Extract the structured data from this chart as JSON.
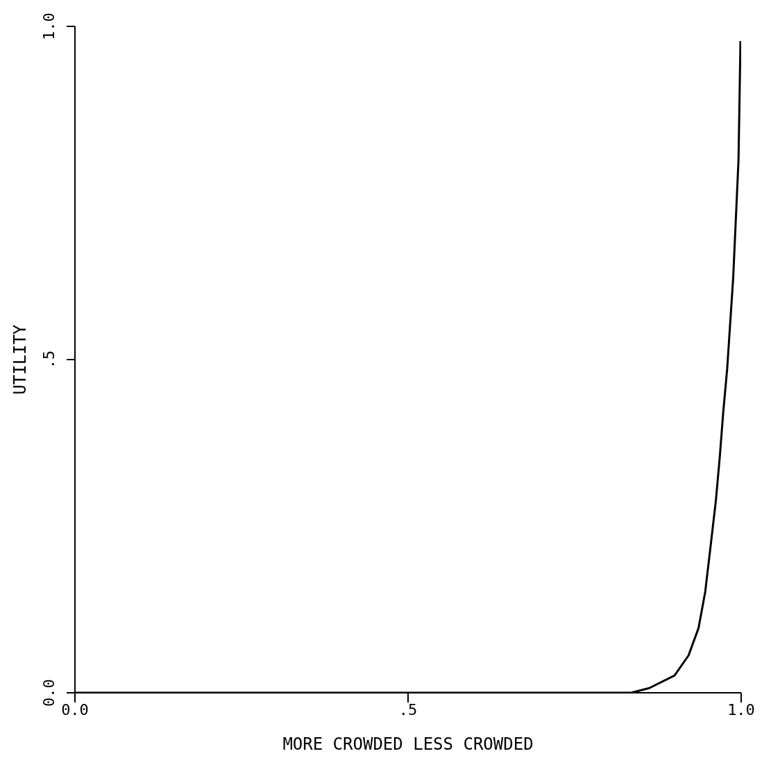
{
  "chart_data": {
    "type": "line",
    "xlabel": "MORE CROWDED      LESS CROWDED",
    "ylabel": "UTILITY",
    "x": [
      0,
      0.835,
      0.862,
      0.9,
      0.921,
      0.936,
      0.946,
      0.954,
      0.962,
      0.968,
      0.973,
      0.979,
      0.988,
      0.996,
      0.999
    ],
    "series": [
      {
        "color": "#000000",
        "values": [
          0,
          0,
          0.007,
          0.026,
          0.056,
          0.097,
          0.151,
          0.219,
          0.288,
          0.355,
          0.42,
          0.486,
          0.622,
          0.799,
          0.978
        ]
      }
    ],
    "xlim": [
      0,
      1
    ],
    "ylim": [
      0,
      1
    ],
    "xticks": [
      {
        "value": 0,
        "label": "0.0"
      },
      {
        "value": 0.5,
        "label": ".5"
      },
      {
        "value": 1,
        "label": "1.0"
      }
    ],
    "yticks": [
      {
        "value": 0,
        "label": "0.0"
      },
      {
        "value": 0.5,
        "label": ".5"
      },
      {
        "value": 1,
        "label": "1.0"
      }
    ],
    "marker": "none",
    "line_style": "solid"
  }
}
